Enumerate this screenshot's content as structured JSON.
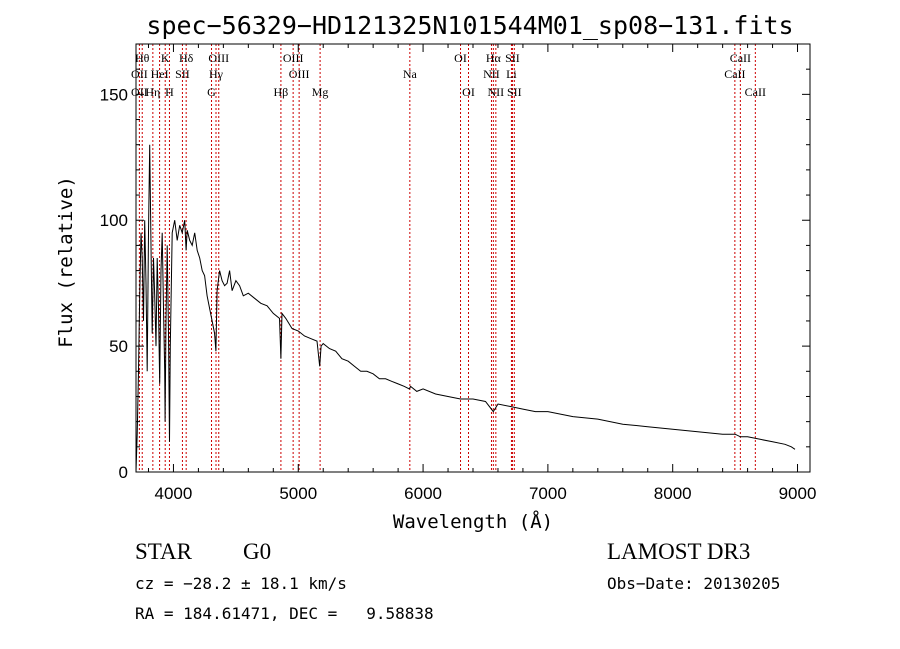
{
  "chart_data": {
    "type": "line",
    "title": "spec−56329−HD121325N101544M01_sp08−131.fits",
    "xlabel": "Wavelength (Å)",
    "ylabel": "Flux (relative)",
    "xlim": [
      3700,
      9100
    ],
    "ylim": [
      0,
      170
    ],
    "xticks": [
      4000,
      5000,
      6000,
      7000,
      8000,
      9000
    ],
    "yticks": [
      0,
      50,
      100,
      150
    ],
    "series": [
      {
        "name": "flux",
        "x": [
          3700,
          3710,
          3720,
          3730,
          3740,
          3750,
          3760,
          3770,
          3780,
          3790,
          3800,
          3810,
          3820,
          3830,
          3840,
          3850,
          3860,
          3870,
          3880,
          3890,
          3900,
          3910,
          3920,
          3930,
          3933,
          3940,
          3950,
          3960,
          3968,
          3975,
          3990,
          4010,
          4030,
          4050,
          4070,
          4090,
          4101,
          4110,
          4130,
          4150,
          4170,
          4190,
          4210,
          4230,
          4250,
          4270,
          4290,
          4310,
          4330,
          4340,
          4350,
          4370,
          4390,
          4410,
          4430,
          4450,
          4470,
          4500,
          4530,
          4560,
          4600,
          4650,
          4700,
          4750,
          4800,
          4850,
          4861,
          4870,
          4900,
          4950,
          5000,
          5050,
          5100,
          5150,
          5172,
          5183,
          5200,
          5250,
          5300,
          5350,
          5400,
          5450,
          5500,
          5550,
          5600,
          5650,
          5700,
          5750,
          5800,
          5850,
          5890,
          5900,
          5950,
          6000,
          6100,
          6200,
          6300,
          6400,
          6500,
          6563,
          6600,
          6700,
          6800,
          6900,
          7000,
          7200,
          7400,
          7600,
          7800,
          8000,
          8200,
          8400,
          8500,
          8542,
          8600,
          8700,
          8800,
          8900,
          8950,
          8980
        ],
        "values": [
          0,
          15,
          40,
          70,
          95,
          85,
          60,
          100,
          75,
          40,
          95,
          130,
          90,
          55,
          85,
          70,
          50,
          85,
          65,
          35,
          80,
          95,
          65,
          40,
          20,
          60,
          90,
          55,
          12,
          50,
          95,
          100,
          92,
          98,
          95,
          100,
          88,
          96,
          92,
          90,
          95,
          88,
          85,
          80,
          78,
          70,
          65,
          60,
          55,
          48,
          72,
          80,
          76,
          74,
          75,
          80,
          72,
          76,
          74,
          70,
          71,
          69,
          67,
          66,
          63,
          61,
          45,
          63,
          61,
          57,
          56,
          54,
          53,
          52,
          42,
          50,
          51,
          49,
          48,
          45,
          44,
          42,
          40,
          40,
          39,
          37,
          37,
          36,
          35,
          34,
          33,
          34,
          32,
          33,
          31,
          30,
          29,
          29,
          28,
          24,
          27,
          26,
          25,
          24,
          24,
          22,
          21,
          19,
          18,
          17,
          16,
          15,
          15,
          14,
          14,
          13,
          12,
          11,
          10,
          9
        ]
      }
    ],
    "lines": [
      {
        "name": "OII",
        "x": 3727,
        "row": 2
      },
      {
        "name": "OII",
        "x": 3727,
        "row": 3
      },
      {
        "name": "Hθ",
        "x": 3750,
        "row": 1
      },
      {
        "name": "Hη",
        "x": 3835,
        "row": 3
      },
      {
        "name": "HeI",
        "x": 3889,
        "row": 2
      },
      {
        "name": "K",
        "x": 3934,
        "row": 1
      },
      {
        "name": "H",
        "x": 3968,
        "row": 3
      },
      {
        "name": "SII",
        "x": 4072,
        "row": 2
      },
      {
        "name": "Hδ",
        "x": 4102,
        "row": 1
      },
      {
        "name": "OIII",
        "x": 4363,
        "row": 1
      },
      {
        "name": "Hγ",
        "x": 4341,
        "row": 2
      },
      {
        "name": "G",
        "x": 4305,
        "row": 3
      },
      {
        "name": "OIII",
        "x": 4959,
        "row": 1
      },
      {
        "name": "OIII",
        "x": 5007,
        "row": 2
      },
      {
        "name": "Hβ",
        "x": 4861,
        "row": 3
      },
      {
        "name": "Mg",
        "x": 5175,
        "row": 3
      },
      {
        "name": "Na",
        "x": 5894,
        "row": 2
      },
      {
        "name": "OI",
        "x": 6300,
        "row": 1
      },
      {
        "name": "OI",
        "x": 6364,
        "row": 3
      },
      {
        "name": "Hα",
        "x": 6563,
        "row": 1
      },
      {
        "name": "NII",
        "x": 6548,
        "row": 2
      },
      {
        "name": "NII",
        "x": 6583,
        "row": 3
      },
      {
        "name": "SII",
        "x": 6716,
        "row": 1
      },
      {
        "name": "Li",
        "x": 6708,
        "row": 2
      },
      {
        "name": "SII",
        "x": 6731,
        "row": 3
      },
      {
        "name": "CaII",
        "x": 8542,
        "row": 1
      },
      {
        "name": "CaII",
        "x": 8498,
        "row": 2
      },
      {
        "name": "CaII",
        "x": 8662,
        "row": 3
      }
    ]
  },
  "info": {
    "object_type": "STAR",
    "subclass": "G0",
    "survey": "LAMOST DR3",
    "redshift": "cz = −28.2 ± 18.1 km/s",
    "obs_date": "Obs−Date: 20130205",
    "coords": "RA = 184.61471, DEC =   9.58838"
  },
  "colors": {
    "spectrum": "#000000",
    "line_marker": "#cc0000",
    "axes": "#000000",
    "background": "#ffffff"
  }
}
